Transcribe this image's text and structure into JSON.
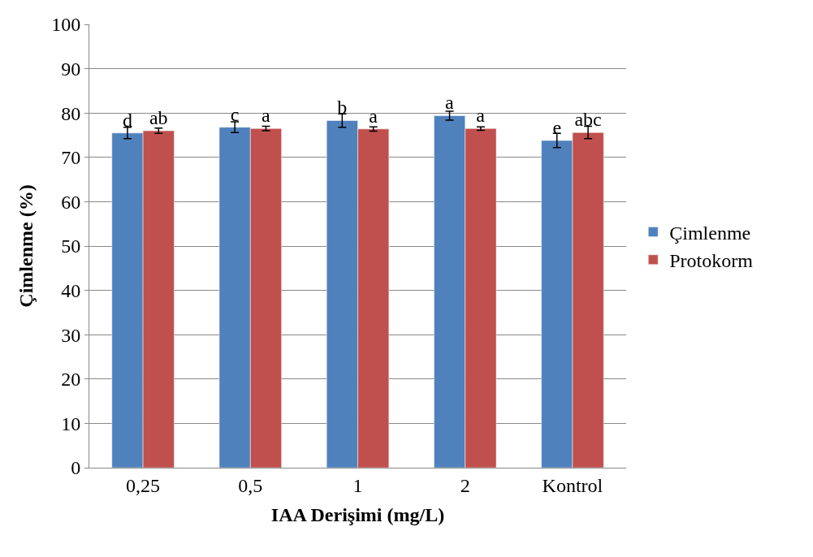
{
  "chart_data": {
    "type": "bar",
    "xlabel": "IAA Derişimi (mg/L)",
    "ylabel": "Çimlenme (%)",
    "categories": [
      "0,25",
      "0,5",
      "1",
      "2",
      "Kontrol"
    ],
    "series": [
      {
        "name": "Çimlenme",
        "color": "#4f81bd",
        "values": [
          75.5,
          76.8,
          78.3,
          79.4,
          73.8
        ],
        "errors": [
          1.3,
          1.2,
          1.5,
          1.0,
          1.6
        ],
        "value_labels": [
          "d",
          "c",
          "b",
          "a",
          "e"
        ]
      },
      {
        "name": "Protokorm",
        "color": "#c0504d",
        "values": [
          76.0,
          76.5,
          76.4,
          76.5,
          75.6
        ],
        "errors": [
          0.6,
          0.5,
          0.5,
          0.4,
          1.4
        ],
        "value_labels": [
          "ab",
          "a",
          "a",
          "a",
          "abc"
        ]
      }
    ],
    "ylim": [
      0,
      100
    ],
    "yticks": [
      0,
      10,
      20,
      30,
      40,
      50,
      60,
      70,
      80,
      90,
      100
    ],
    "grid": "y",
    "legend": "right"
  }
}
